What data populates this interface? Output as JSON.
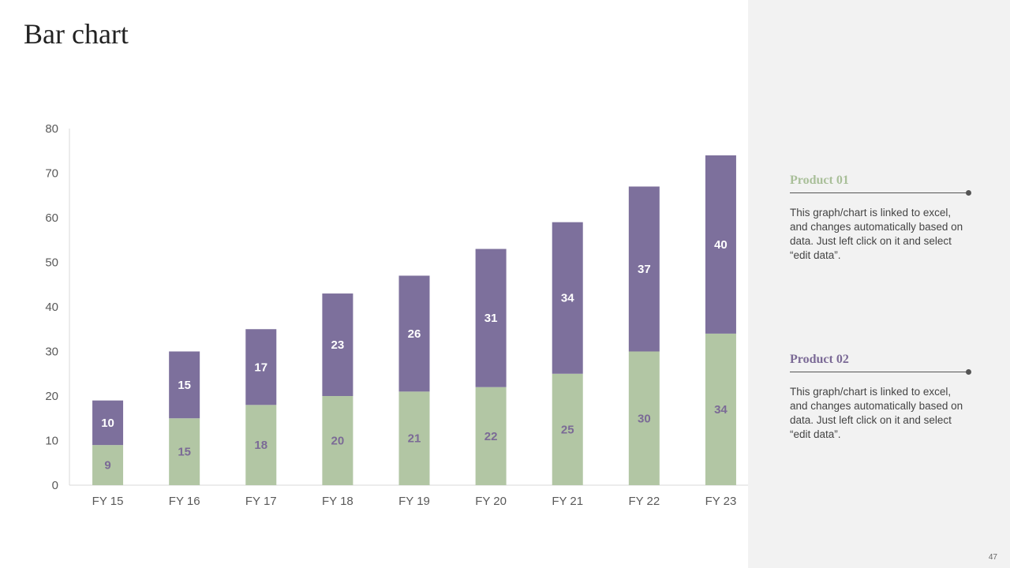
{
  "slide": {
    "title": "Bar chart",
    "page_number": "47"
  },
  "legend": [
    {
      "name": "Product 01",
      "color": "#a9bf99",
      "description": "This graph/chart is linked to excel, and changes automatically based on data. Just left click on it and select “edit data”."
    },
    {
      "name": "Product 02",
      "color": "#7b6a96",
      "description": "This graph/chart is linked to excel, and changes automatically based on data. Just left click on it and select “edit data”."
    }
  ],
  "chart_data": {
    "type": "bar",
    "stacked": true,
    "categories": [
      "FY 15",
      "FY 16",
      "FY 17",
      "FY 18",
      "FY 19",
      "FY 20",
      "FY 21",
      "FY 22",
      "FY 23"
    ],
    "series": [
      {
        "name": "Product 01",
        "color": "#b2c6a4",
        "label_color": "#7b6a96",
        "values": [
          9,
          15,
          18,
          20,
          21,
          22,
          25,
          30,
          34
        ]
      },
      {
        "name": "Product 02",
        "color": "#7d709c",
        "label_color": "#ffffff",
        "values": [
          10,
          15,
          17,
          23,
          26,
          31,
          34,
          37,
          40
        ]
      }
    ],
    "ylim": [
      0,
      80
    ],
    "yticks": [
      0,
      10,
      20,
      30,
      40,
      50,
      60,
      70,
      80
    ],
    "grid": false,
    "legend_position": "right"
  }
}
